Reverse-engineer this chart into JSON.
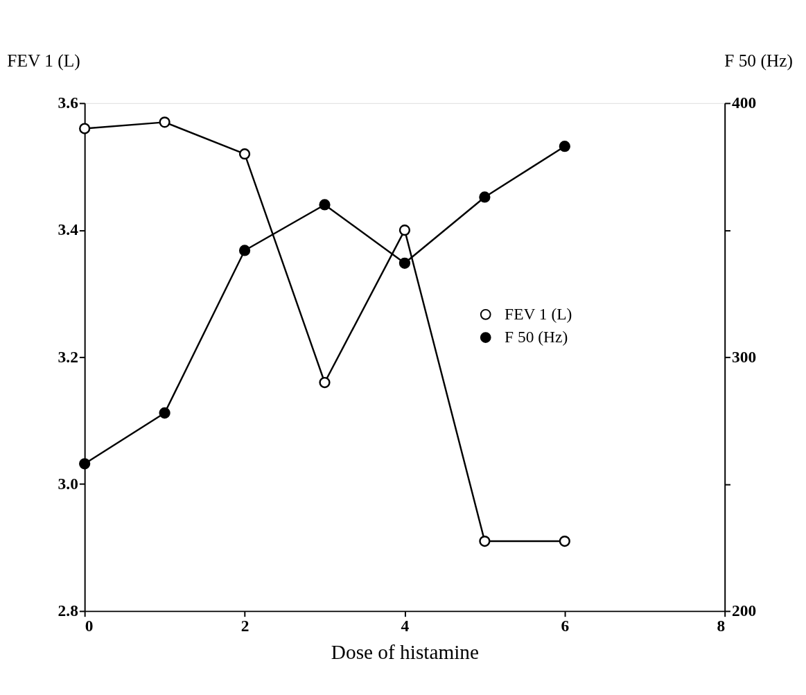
{
  "chart_data": {
    "type": "line",
    "xlabel": "Dose of histamine",
    "ylabel": "FEV 1 (L)",
    "y2label": "F 50 (Hz)",
    "x": [
      0,
      1,
      2,
      3,
      4,
      5,
      6
    ],
    "series": [
      {
        "name": "FEV 1 (L)",
        "color": "#000000",
        "values": [
          3.56,
          3.57,
          3.52,
          3.16,
          3.4,
          2.91,
          2.91
        ]
      },
      {
        "name": "F 50 (Hz)",
        "color": "#000000",
        "axis": "y2",
        "values": [
          258,
          278,
          342,
          360,
          337,
          363,
          383
        ]
      }
    ],
    "xlim": [
      0,
      8
    ],
    "xticks": [
      0,
      2,
      4,
      6,
      8
    ],
    "ylim": [
      2.8,
      3.6
    ],
    "yticks": [
      2.8,
      {
        "value": 3.0,
        "label": "3.0"
      },
      3.2,
      3.4,
      3.6
    ],
    "y2lim": [
      200,
      400
    ],
    "y2ticks": [
      200,
      {
        "value": 250,
        "label": null
      },
      300,
      {
        "value": 350,
        "label": null
      },
      400
    ],
    "marker": "circle",
    "line_style": "solid",
    "grid": false,
    "legend": "right"
  }
}
